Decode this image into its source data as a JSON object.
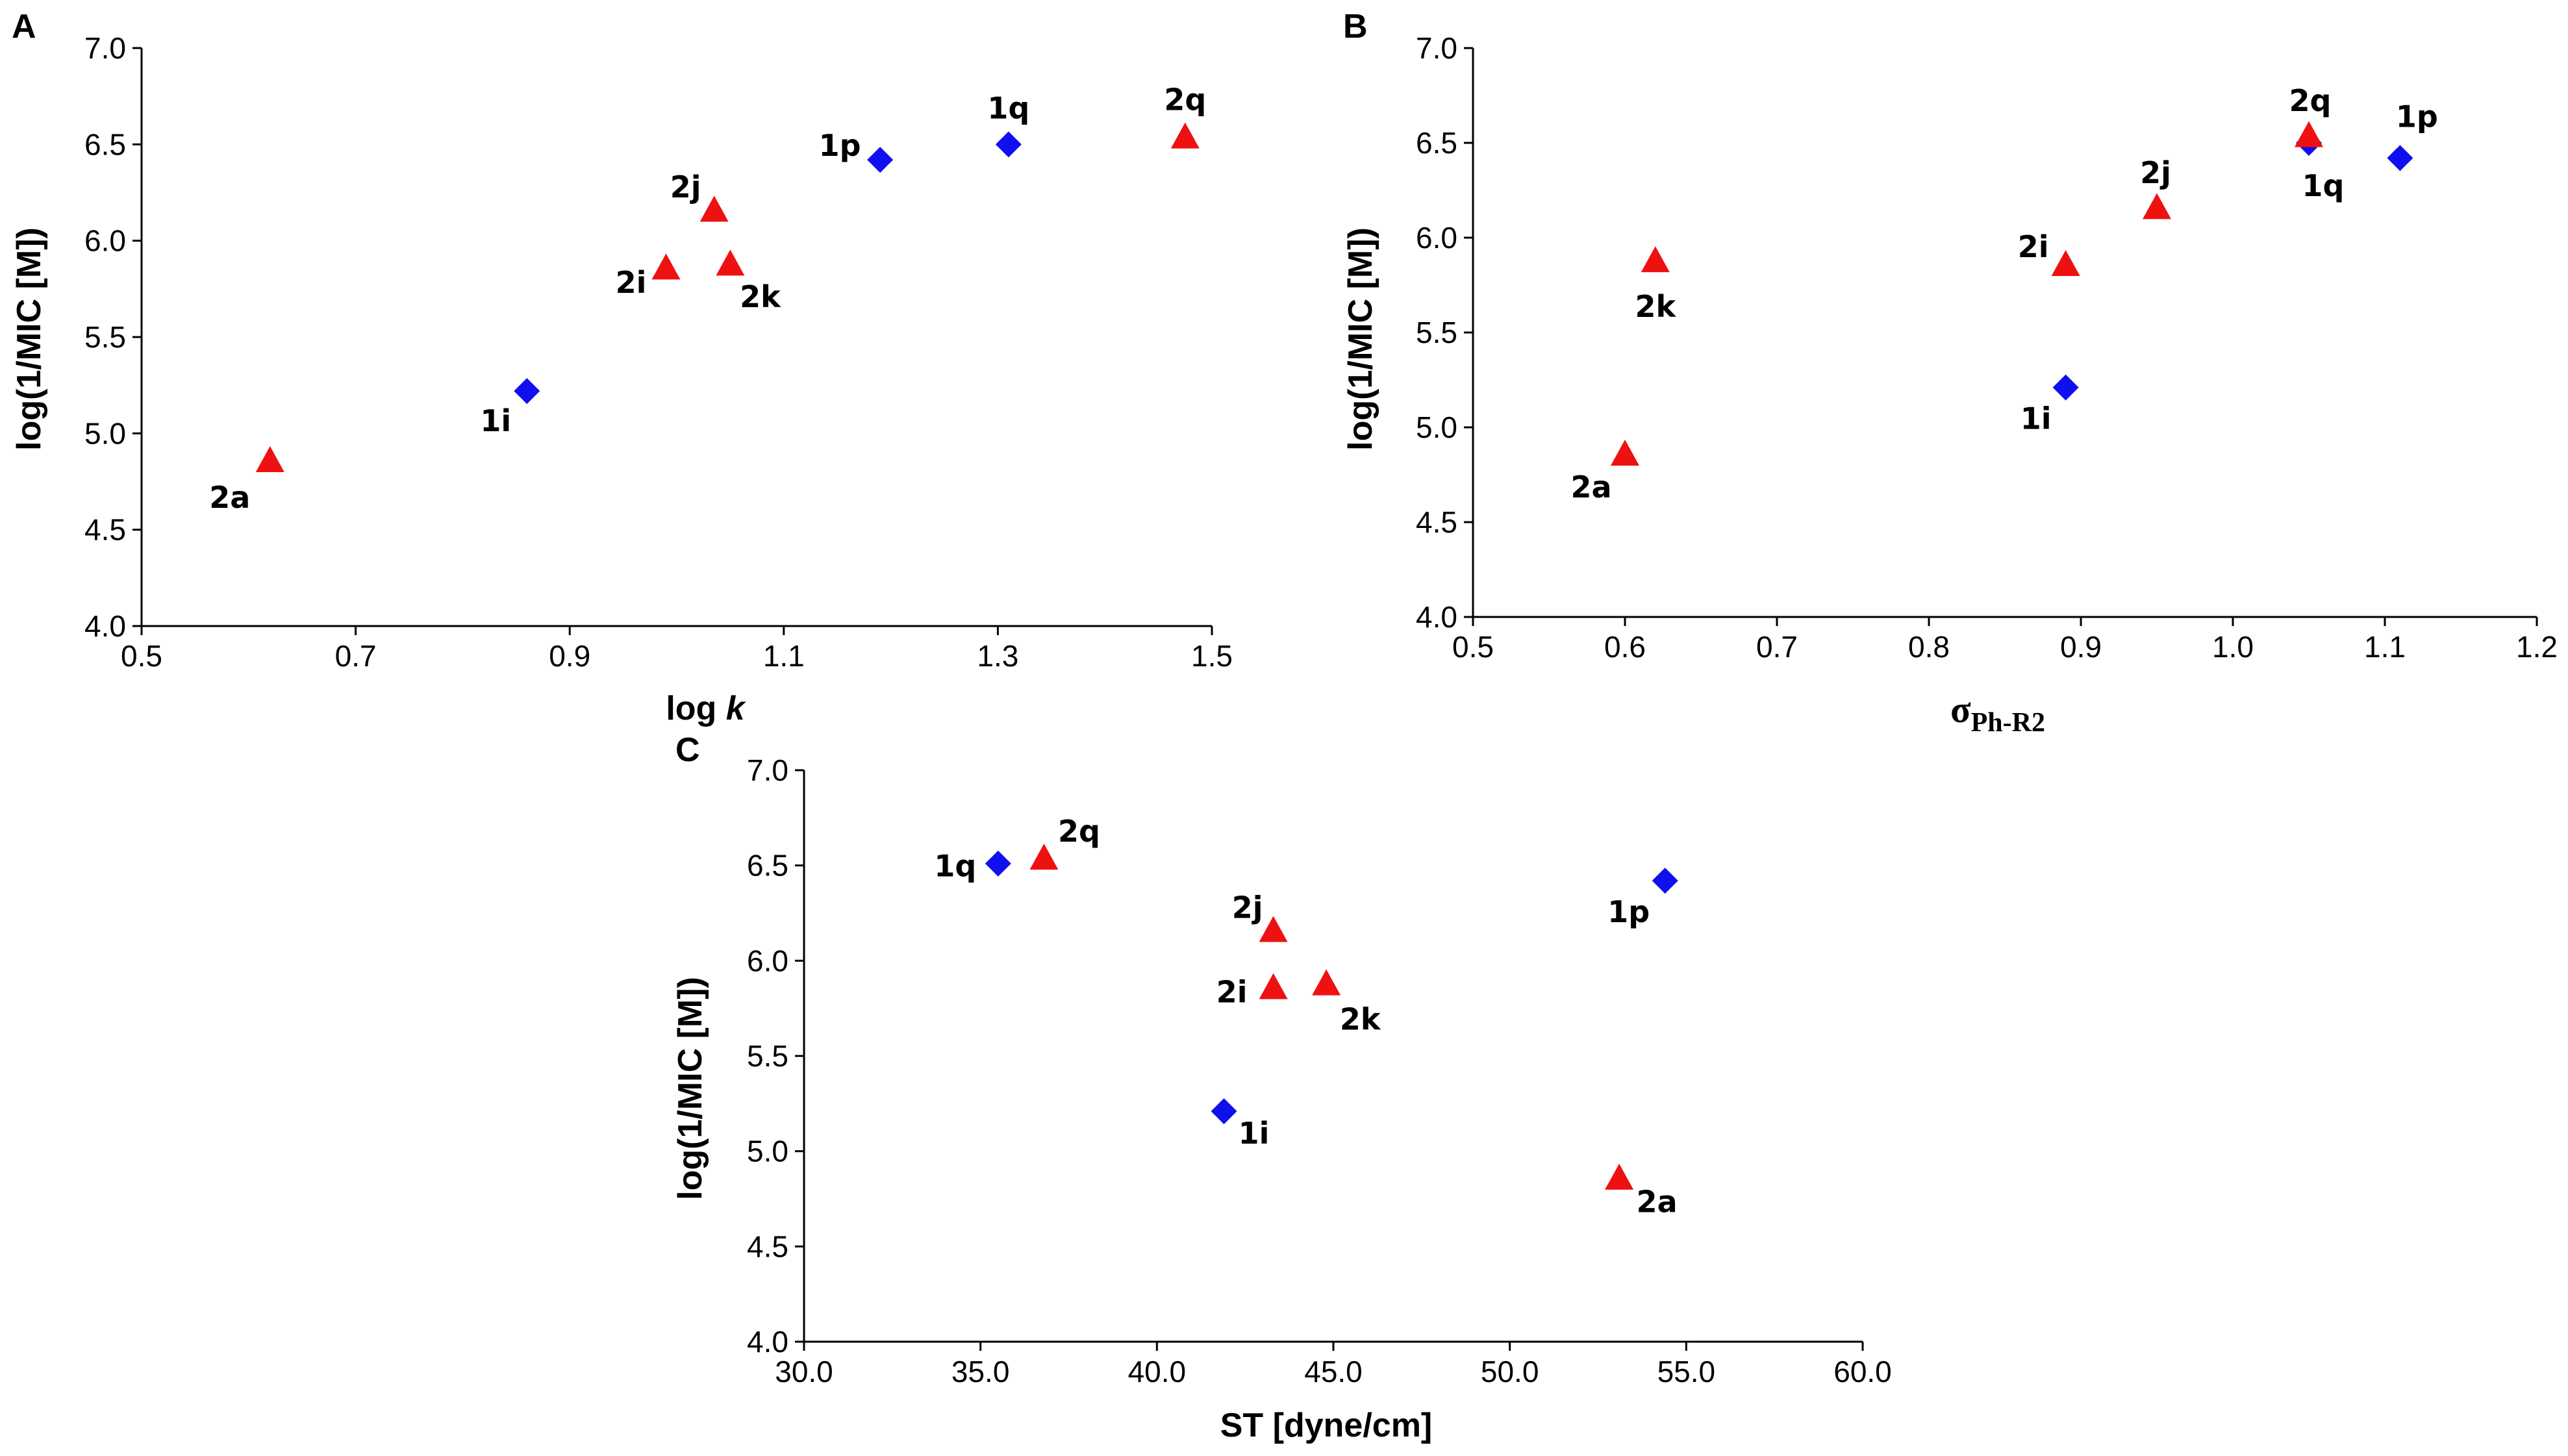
{
  "chart_data": [
    {
      "panel": "A",
      "type": "scatter",
      "xlabel": "log k",
      "ylabel": "log(1/MIC [M])",
      "xlim": [
        0.5,
        1.5
      ],
      "ylim": [
        4.0,
        7.0
      ],
      "xticks": [
        "0.5",
        "0.7",
        "0.9",
        "1.1",
        "1.3",
        "1.5"
      ],
      "yticks": [
        "4.0",
        "4.5",
        "5.0",
        "5.5",
        "6.0",
        "6.5",
        "7.0"
      ],
      "grid": false,
      "points": [
        {
          "label": "2a",
          "x": 0.62,
          "y": 4.85,
          "series": "triangle"
        },
        {
          "label": "1i",
          "x": 0.86,
          "y": 5.22,
          "series": "diamond"
        },
        {
          "label": "2i",
          "x": 0.99,
          "y": 5.85,
          "series": "triangle"
        },
        {
          "label": "2j",
          "x": 1.035,
          "y": 6.15,
          "series": "triangle"
        },
        {
          "label": "2k",
          "x": 1.05,
          "y": 5.87,
          "series": "triangle"
        },
        {
          "label": "1p",
          "x": 1.19,
          "y": 6.42,
          "series": "diamond"
        },
        {
          "label": "1q",
          "x": 1.31,
          "y": 6.5,
          "series": "diamond"
        },
        {
          "label": "2q",
          "x": 1.475,
          "y": 6.53,
          "series": "triangle"
        }
      ]
    },
    {
      "panel": "B",
      "type": "scatter",
      "xlabel": "σ",
      "xlabel_sub": "Ph-R2",
      "ylabel": "log(1/MIC [M])",
      "xlim": [
        0.5,
        1.2
      ],
      "ylim": [
        4.0,
        7.0
      ],
      "xticks": [
        "0.5",
        "0.6",
        "0.7",
        "0.8",
        "0.9",
        "1.0",
        "1.1",
        "1.2"
      ],
      "yticks": [
        "4.0",
        "4.5",
        "5.0",
        "5.5",
        "6.0",
        "6.5",
        "7.0"
      ],
      "grid": false,
      "points": [
        {
          "label": "2a",
          "x": 0.6,
          "y": 4.85,
          "series": "triangle"
        },
        {
          "label": "2k",
          "x": 0.62,
          "y": 5.87,
          "series": "triangle"
        },
        {
          "label": "1i",
          "x": 0.89,
          "y": 5.21,
          "series": "diamond"
        },
        {
          "label": "2i",
          "x": 0.89,
          "y": 5.85,
          "series": "triangle"
        },
        {
          "label": "2j",
          "x": 0.95,
          "y": 6.15,
          "series": "triangle"
        },
        {
          "label": "1q",
          "x": 1.05,
          "y": 6.5,
          "series": "diamond"
        },
        {
          "label": "2q",
          "x": 1.05,
          "y": 6.53,
          "series": "triangle"
        },
        {
          "label": "1p",
          "x": 1.11,
          "y": 6.42,
          "series": "diamond"
        }
      ]
    },
    {
      "panel": "C",
      "type": "scatter",
      "xlabel": "ST [dyne/cm]",
      "ylabel": "log(1/MIC [M])",
      "xlim": [
        30.0,
        60.0
      ],
      "ylim": [
        4.0,
        7.0
      ],
      "xticks": [
        "30.0",
        "35.0",
        "40.0",
        "45.0",
        "50.0",
        "55.0",
        "60.0"
      ],
      "yticks": [
        "4.0",
        "4.5",
        "5.0",
        "5.5",
        "6.0",
        "6.5",
        "7.0"
      ],
      "grid": false,
      "points": [
        {
          "label": "1q",
          "x": 35.5,
          "y": 6.51,
          "series": "diamond"
        },
        {
          "label": "2q",
          "x": 36.8,
          "y": 6.53,
          "series": "triangle"
        },
        {
          "label": "1i",
          "x": 41.9,
          "y": 5.21,
          "series": "diamond"
        },
        {
          "label": "2i",
          "x": 43.3,
          "y": 5.85,
          "series": "triangle"
        },
        {
          "label": "2j",
          "x": 43.3,
          "y": 6.15,
          "series": "triangle"
        },
        {
          "label": "2k",
          "x": 44.8,
          "y": 5.87,
          "series": "triangle"
        },
        {
          "label": "2a",
          "x": 53.1,
          "y": 4.85,
          "series": "triangle"
        },
        {
          "label": "1p",
          "x": 54.4,
          "y": 6.42,
          "series": "diamond"
        }
      ]
    }
  ],
  "colors": {
    "diamond": "#1010ee",
    "triangle": "#ee1111",
    "axis": "#000000"
  }
}
